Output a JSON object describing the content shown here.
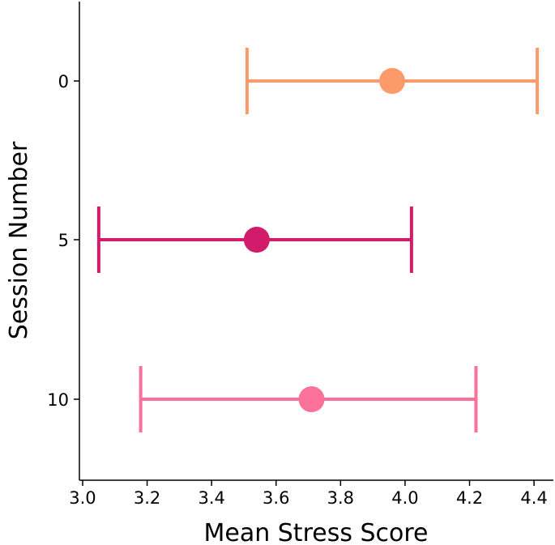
{
  "chart_data": {
    "type": "errorbar",
    "orientation": "horizontal",
    "title": "",
    "xlabel": "Mean Stress Score",
    "ylabel": "Session Number",
    "xlim": [
      2.99,
      4.46
    ],
    "x_ticks": [
      {
        "value": 3.0,
        "label": "3.0"
      },
      {
        "value": 3.2,
        "label": "3.2"
      },
      {
        "value": 3.4,
        "label": "3.4"
      },
      {
        "value": 3.6,
        "label": "3.6"
      },
      {
        "value": 3.8,
        "label": "3.8"
      },
      {
        "value": 4.0,
        "label": "4.0"
      },
      {
        "value": 4.2,
        "label": "4.2"
      },
      {
        "value": 4.4,
        "label": "4.4"
      }
    ],
    "categories": [
      "0",
      "5",
      "10"
    ],
    "series": [
      {
        "name": "0",
        "mean": 3.96,
        "lower": 3.51,
        "upper": 4.41,
        "color": "#FC9A6C"
      },
      {
        "name": "5",
        "mean": 3.54,
        "lower": 3.05,
        "upper": 4.02,
        "color": "#D01C6B"
      },
      {
        "name": "10",
        "mean": 3.71,
        "lower": 3.18,
        "upper": 4.22,
        "color": "#FA7199"
      }
    ],
    "grid": false,
    "legend": "none"
  }
}
